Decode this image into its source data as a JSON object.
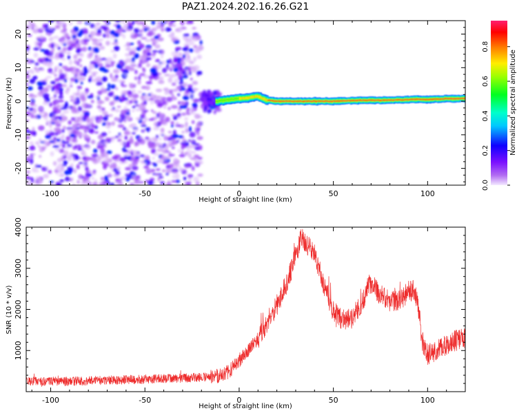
{
  "figure": {
    "title": "PAZ1.2024.202.16.26.G21"
  },
  "chart_data": [
    {
      "type": "heatmap",
      "xlabel": "Height of straight line (km)",
      "ylabel": "Frequency (Hz)",
      "xlim": [
        -113,
        120
      ],
      "ylim": [
        -25,
        24
      ],
      "xticks": [
        -100,
        -50,
        0,
        50,
        100
      ],
      "xtick_labels": [
        "-100",
        "-50",
        "0",
        "50",
        "100"
      ],
      "yticks": [
        -20,
        -10,
        0,
        10,
        20
      ],
      "ytick_labels": [
        "-20",
        "-10",
        "0",
        "10",
        "20"
      ],
      "grid": false,
      "colorbar": {
        "label": "Normalized spectral amplitude",
        "range": [
          0,
          0.95
        ],
        "ticks": [
          0.0,
          0.2,
          0.4,
          0.6,
          0.8
        ],
        "tick_labels": [
          "0.0",
          "0.2",
          "0.4",
          "0.6",
          "0.8"
        ],
        "colormap": "gist_rainbow_r"
      },
      "regions": [
        {
          "x_range": [
            -113,
            -20
          ],
          "freq_range": [
            -25,
            24
          ],
          "amplitude": [
            0.02,
            0.25
          ],
          "pattern": "scattered noise"
        },
        {
          "x_range": [
            -20,
            -10
          ],
          "freq_range": [
            -6,
            6
          ],
          "amplitude": [
            0.1,
            0.3
          ],
          "pattern": "transition"
        },
        {
          "x_range": [
            -10,
            120
          ],
          "freq_range": [
            -1.5,
            2.0
          ],
          "amplitude": [
            0.35,
            0.95
          ],
          "pattern": "narrow band near 0-1 Hz"
        }
      ],
      "ridge_x": [
        -12,
        -5,
        0,
        5,
        10,
        15,
        20,
        30,
        40,
        50,
        60,
        70,
        80,
        90,
        95,
        100,
        110,
        120
      ],
      "ridge_freq": [
        0.0,
        0.5,
        0.8,
        1.0,
        1.5,
        0.3,
        0.0,
        0.0,
        0.0,
        0.0,
        0.2,
        0.3,
        0.3,
        0.5,
        0.6,
        0.5,
        0.7,
        0.8
      ]
    },
    {
      "type": "line",
      "xlabel": "Height of straight line (km)",
      "ylabel": "SNR (10 * v/v)",
      "xlim": [
        -113,
        120
      ],
      "ylim": [
        0,
        4000
      ],
      "xticks": [
        -100,
        -50,
        0,
        50,
        100
      ],
      "xtick_labels": [
        "-100",
        "-50",
        "0",
        "50",
        "100"
      ],
      "yticks": [
        1000,
        2000,
        3000,
        4000
      ],
      "ytick_labels": [
        "1000",
        "2000",
        "3000",
        "4000"
      ],
      "grid": false,
      "color": "#ee2c2c",
      "x": [
        -113,
        -90,
        -70,
        -50,
        -30,
        -20,
        -10,
        -5,
        0,
        5,
        10,
        15,
        20,
        25,
        30,
        33,
        35,
        40,
        45,
        50,
        55,
        60,
        65,
        68,
        70,
        75,
        80,
        85,
        90,
        93,
        95,
        97,
        100,
        105,
        110,
        115,
        120
      ],
      "y": [
        250,
        250,
        280,
        300,
        330,
        350,
        380,
        500,
        750,
        1000,
        1300,
        1700,
        2100,
        2600,
        3300,
        3750,
        3650,
        3350,
        2600,
        1950,
        1750,
        1800,
        2100,
        2550,
        2650,
        2350,
        2200,
        2200,
        2450,
        2500,
        2100,
        1250,
        900,
        1000,
        1150,
        1250,
        1300
      ]
    }
  ]
}
